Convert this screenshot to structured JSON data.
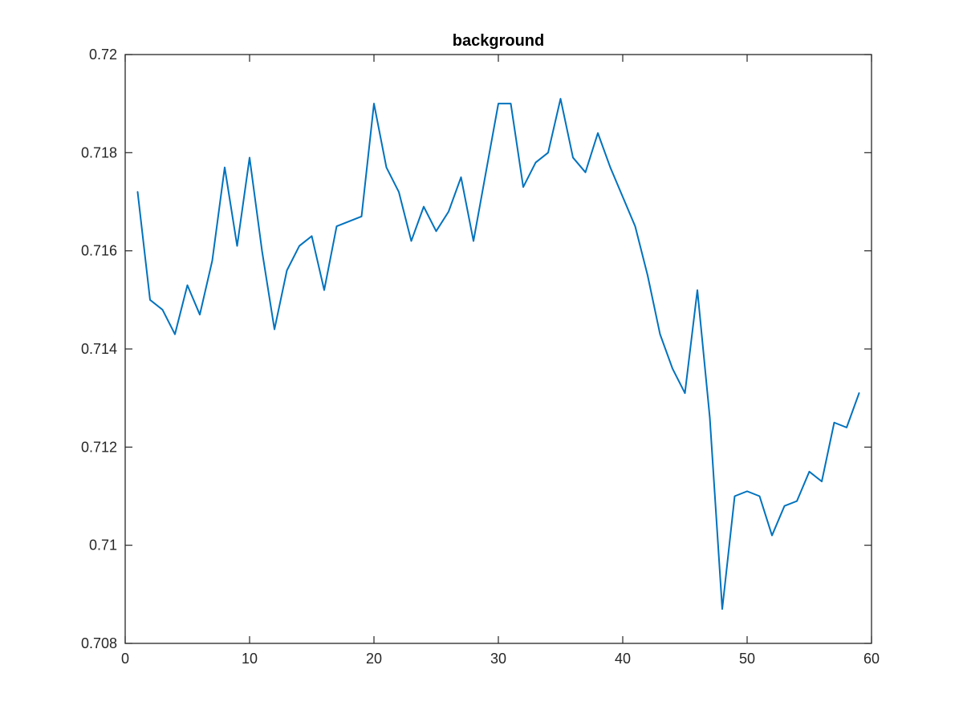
{
  "chart_data": {
    "type": "line",
    "title": "background",
    "xlabel": "",
    "ylabel": "",
    "xlim": [
      0,
      60
    ],
    "ylim": [
      0.708,
      0.72
    ],
    "grid": false,
    "x_ticks": [
      0,
      10,
      20,
      30,
      40,
      50,
      60
    ],
    "x_tick_labels": [
      "0",
      "10",
      "20",
      "30",
      "40",
      "50",
      "60"
    ],
    "y_ticks": [
      0.708,
      0.71,
      0.712,
      0.714,
      0.716,
      0.718,
      0.72
    ],
    "y_tick_labels": [
      "0.708",
      "0.71",
      "0.712",
      "0.714",
      "0.716",
      "0.718",
      "0.72"
    ],
    "series": [
      {
        "name": "background",
        "color": "#0072bd",
        "x": [
          1,
          2,
          3,
          4,
          5,
          6,
          7,
          8,
          9,
          10,
          11,
          12,
          13,
          14,
          15,
          16,
          17,
          18,
          19,
          20,
          21,
          22,
          23,
          24,
          25,
          26,
          27,
          28,
          29,
          30,
          31,
          32,
          33,
          34,
          35,
          36,
          37,
          38,
          39,
          40,
          41,
          42,
          43,
          44,
          45,
          46,
          47,
          48,
          49,
          50,
          51,
          52,
          53,
          54,
          55,
          56,
          57,
          58,
          59
        ],
        "values": [
          0.7172,
          0.715,
          0.7148,
          0.7143,
          0.7153,
          0.7147,
          0.7158,
          0.7177,
          0.7161,
          0.7179,
          0.716,
          0.7144,
          0.7156,
          0.7161,
          0.7163,
          0.7152,
          0.7165,
          0.7166,
          0.7167,
          0.719,
          0.7177,
          0.7172,
          0.7162,
          0.7169,
          0.7164,
          0.7168,
          0.7175,
          0.7162,
          0.7176,
          0.719,
          0.719,
          0.7173,
          0.7178,
          0.718,
          0.7191,
          0.7179,
          0.7176,
          0.7184,
          0.7177,
          0.7171,
          0.7165,
          0.7155,
          0.7143,
          0.7136,
          0.7131,
          0.7152,
          0.7126,
          0.7087,
          0.711,
          0.7111,
          0.711,
          0.7102,
          0.7108,
          0.7109,
          0.7115,
          0.7113,
          0.7125,
          0.7124,
          0.7131
        ]
      }
    ]
  }
}
